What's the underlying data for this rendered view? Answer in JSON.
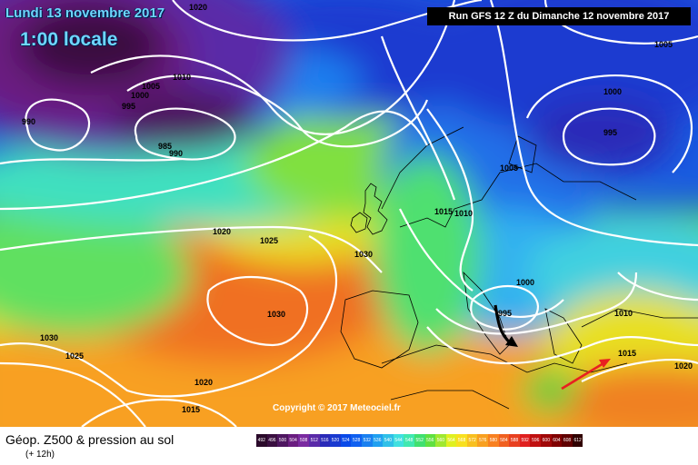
{
  "header": {
    "date": "Lundi 13 novembre 2017",
    "time": "1:00 locale",
    "run": "Run GFS 12 Z du Dimanche 12 novembre 2017"
  },
  "copyright": "Copyright © 2017 Meteociel.fr",
  "legend": {
    "title": "Géop. Z500 & pression au sol",
    "subtitle": "(+ 12h)",
    "scale_values": [
      "492",
      "496",
      "500",
      "504",
      "508",
      "512",
      "516",
      "520",
      "524",
      "528",
      "532",
      "536",
      "540",
      "544",
      "548",
      "552",
      "556",
      "560",
      "564",
      "568",
      "572",
      "576",
      "580",
      "584",
      "588",
      "592",
      "596",
      "600",
      "604",
      "608",
      "612"
    ],
    "scale_colors": [
      "#2a0a2a",
      "#3a0f40",
      "#4e1660",
      "#6a1d80",
      "#7a2aa0",
      "#5a2aa8",
      "#2a2ab8",
      "#1a3ad0",
      "#0a4ae8",
      "#1060f0",
      "#1a80f0",
      "#20a0f0",
      "#30c0e8",
      "#40e0e0",
      "#40e8b0",
      "#40e070",
      "#60e040",
      "#a0e830",
      "#e0f020",
      "#f8e020",
      "#f8c020",
      "#f8a020",
      "#f88020",
      "#f06020",
      "#e84020",
      "#e02020",
      "#c01010",
      "#a00808",
      "#800000",
      "#600000",
      "#300000"
    ]
  },
  "isobars": [
    {
      "label": "1020"
    },
    {
      "label": "1010"
    },
    {
      "label": "1005"
    },
    {
      "label": "1000"
    },
    {
      "label": "995"
    },
    {
      "label": "990"
    },
    {
      "label": "985"
    },
    {
      "label": "990"
    },
    {
      "label": "1005"
    },
    {
      "label": "1000"
    },
    {
      "label": "995"
    },
    {
      "label": "1005"
    },
    {
      "label": "1015"
    },
    {
      "label": "1010"
    },
    {
      "label": "1020"
    },
    {
      "label": "1025"
    },
    {
      "label": "1030"
    },
    {
      "label": "1030"
    },
    {
      "label": "1030"
    },
    {
      "label": "1025"
    },
    {
      "label": "1020"
    },
    {
      "label": "1015"
    },
    {
      "label": "1000"
    },
    {
      "label": "995"
    },
    {
      "label": "1010"
    },
    {
      "label": "1015"
    },
    {
      "label": "1020"
    }
  ],
  "colors": {
    "black_arrow": "#000000",
    "red_arrow": "#e82020",
    "isobar": "#ffffff"
  }
}
